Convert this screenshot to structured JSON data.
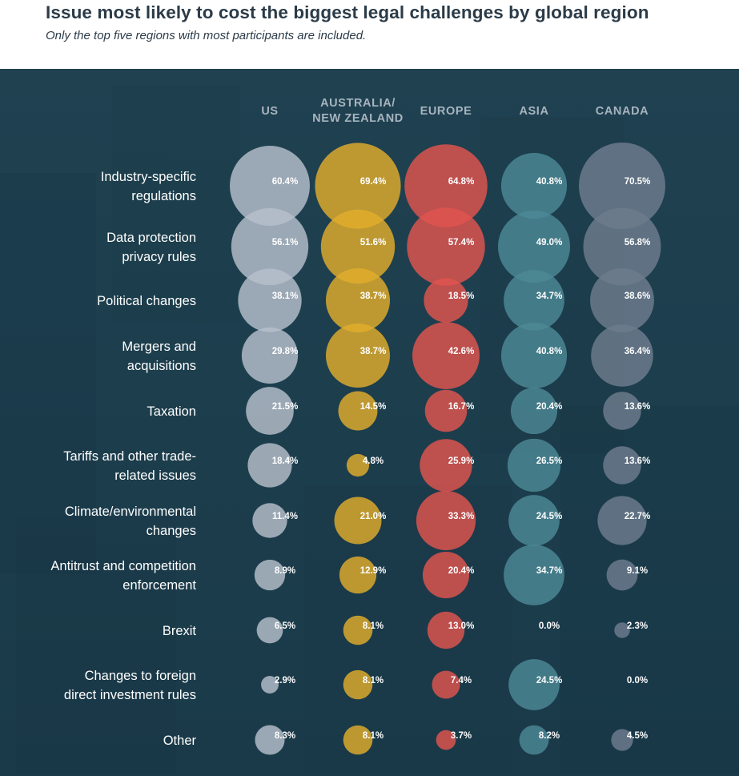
{
  "header": {
    "title": "Issue most likely to cost the biggest legal challenges by global region",
    "subtitle": "Only the top five regions with most participants are included."
  },
  "chart_data": {
    "type": "bubble-matrix",
    "title": "Issue most likely to cost the biggest legal challenges by global region",
    "subtitle": "Only the top five regions with most participants are included.",
    "unit": "%",
    "columns": [
      {
        "key": "US",
        "label_lines": [
          "US"
        ],
        "color": "#b7bfcc"
      },
      {
        "key": "AUSTRALIA/NEW ZEALAND",
        "label_lines": [
          "AUSTRALIA/",
          "NEW ZEALAND"
        ],
        "color": "#e2ad2c"
      },
      {
        "key": "EUROPE",
        "label_lines": [
          "EUROPE"
        ],
        "color": "#e2544e"
      },
      {
        "key": "ASIA",
        "label_lines": [
          "ASIA"
        ],
        "color": "#4d8996"
      },
      {
        "key": "CANADA",
        "label_lines": [
          "CANADA"
        ],
        "color": "#6e7d8e"
      }
    ],
    "rows": [
      {
        "label_lines": [
          "Industry-specific",
          "regulations"
        ],
        "values": [
          60.4,
          69.4,
          64.8,
          40.8,
          70.5
        ],
        "labels": [
          "60.4%",
          "69.4%",
          "64.8%",
          "40.8%",
          "70.5%"
        ]
      },
      {
        "label_lines": [
          "Data protection",
          "privacy rules"
        ],
        "values": [
          56.1,
          51.6,
          57.4,
          49.0,
          56.8
        ],
        "labels": [
          "56.1%",
          "51.6%",
          "57.4%",
          "49.0%",
          "56.8%"
        ]
      },
      {
        "label_lines": [
          "Political changes"
        ],
        "values": [
          38.1,
          38.7,
          18.5,
          34.7,
          38.6
        ],
        "labels": [
          "38.1%",
          "38.7%",
          "18.5%",
          "34.7%",
          "38.6%"
        ]
      },
      {
        "label_lines": [
          "Mergers and",
          "acquisitions"
        ],
        "values": [
          29.8,
          38.7,
          42.6,
          40.8,
          36.4
        ],
        "labels": [
          "29.8%",
          "38.7%",
          "42.6%",
          "40.8%",
          "36.4%"
        ]
      },
      {
        "label_lines": [
          "Taxation"
        ],
        "values": [
          21.5,
          14.5,
          16.7,
          20.4,
          13.6
        ],
        "labels": [
          "21.5%",
          "14.5%",
          "16.7%",
          "20.4%",
          "13.6%"
        ]
      },
      {
        "label_lines": [
          "Tariffs and other trade-",
          "related issues"
        ],
        "values": [
          18.4,
          4.8,
          25.9,
          26.5,
          13.6
        ],
        "labels": [
          "18.4%",
          "4.8%",
          "25.9%",
          "26.5%",
          "13.6%"
        ]
      },
      {
        "label_lines": [
          "Climate/environmental",
          "changes"
        ],
        "values": [
          11.4,
          21.0,
          33.3,
          24.5,
          22.7
        ],
        "labels": [
          "11.4%",
          "21.0%",
          "33.3%",
          "24.5%",
          "22.7%"
        ]
      },
      {
        "label_lines": [
          "Antitrust and competition",
          "enforcement"
        ],
        "values": [
          8.9,
          12.9,
          20.4,
          34.7,
          9.1
        ],
        "labels": [
          "8.9%",
          "12.9%",
          "20.4%",
          "34.7%",
          "9.1%"
        ]
      },
      {
        "label_lines": [
          "Brexit"
        ],
        "values": [
          6.5,
          8.1,
          13.0,
          0.0,
          2.3
        ],
        "labels": [
          "6.5%",
          "8.1%",
          "13.0%",
          "0.0%",
          "2.3%"
        ]
      },
      {
        "label_lines": [
          "Changes to foreign",
          "direct investment rules"
        ],
        "values": [
          2.9,
          8.1,
          7.4,
          24.5,
          0.0
        ],
        "labels": [
          "2.9%",
          "8.1%",
          "7.4%",
          "24.5%",
          "0.0%"
        ]
      },
      {
        "label_lines": [
          "Other"
        ],
        "values": [
          8.3,
          8.1,
          3.7,
          8.2,
          4.5
        ],
        "labels": [
          "8.3%",
          "8.1%",
          "3.7%",
          "8.2%",
          "4.5%"
        ]
      }
    ]
  }
}
